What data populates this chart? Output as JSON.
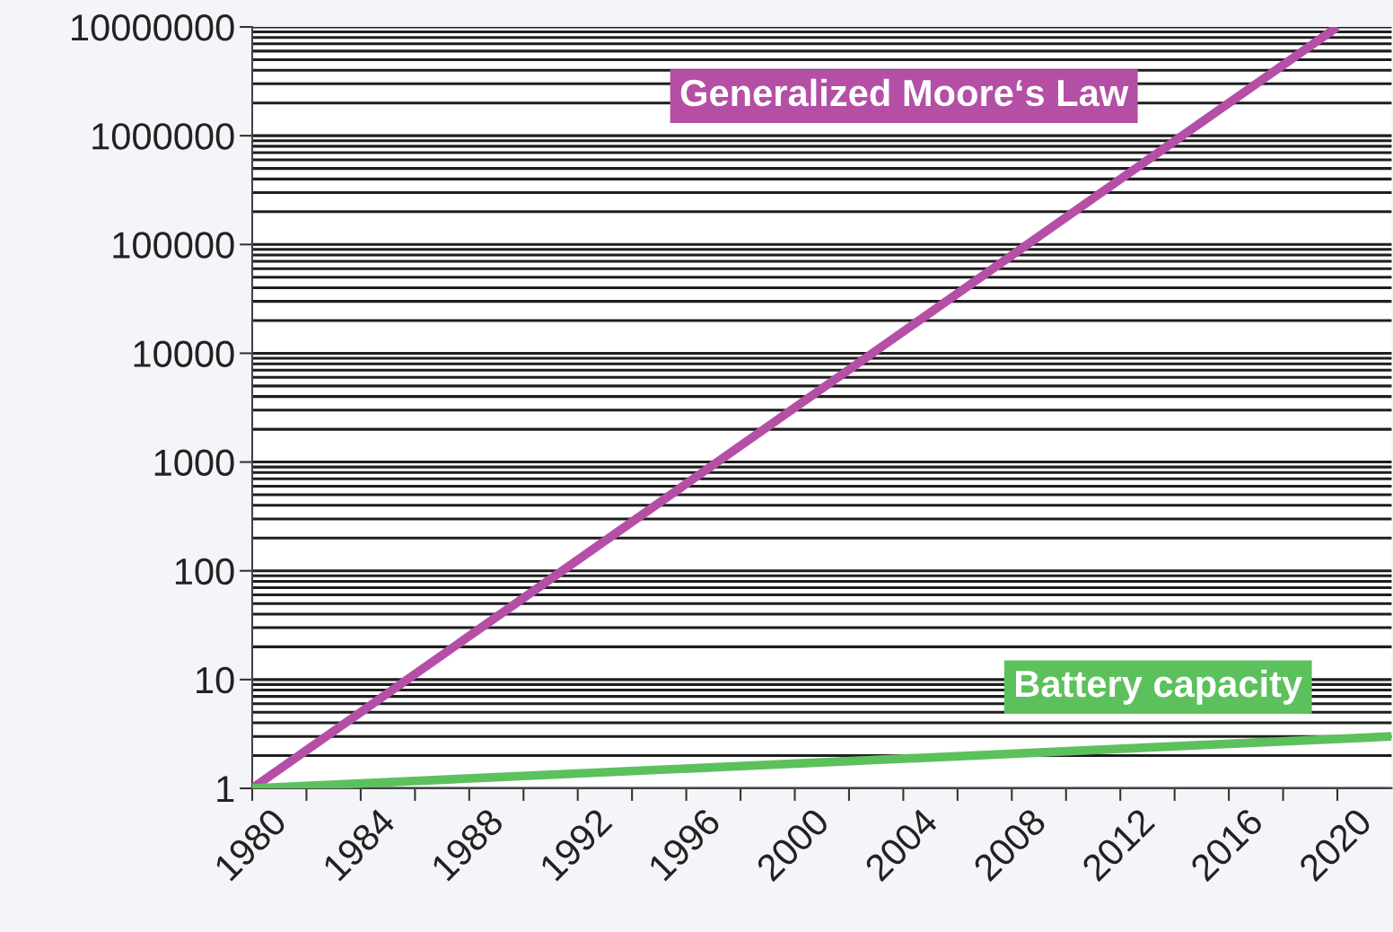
{
  "chart_data": {
    "type": "line",
    "series": [
      {
        "name": "Generalized Moore‘s Law",
        "color": "#b54fa6",
        "x": [
          1980,
          2020
        ],
        "values": [
          1,
          10000000
        ]
      },
      {
        "name": "Battery capacity",
        "color": "#5cc15c",
        "x": [
          1980,
          2022
        ],
        "values": [
          1,
          3
        ]
      }
    ],
    "log": "y",
    "xlim": [
      1980,
      2022
    ],
    "xticks": [
      1980,
      {
        "value": 1982,
        "label": null
      },
      1984,
      {
        "value": 1986,
        "label": null
      },
      1988,
      {
        "value": 1990,
        "label": null
      },
      1992,
      {
        "value": 1994,
        "label": null
      },
      1996,
      {
        "value": 1998,
        "label": null
      },
      2000,
      {
        "value": 2002,
        "label": null
      },
      2004,
      {
        "value": 2006,
        "label": null
      },
      2008,
      {
        "value": 2010,
        "label": null
      },
      2012,
      {
        "value": 2014,
        "label": null
      },
      2016,
      {
        "value": 2018,
        "label": null
      },
      2020
    ],
    "ylim": [
      1,
      10000000
    ],
    "yticks": [
      1,
      10,
      100,
      1000,
      10000,
      100000,
      1000000,
      10000000
    ],
    "grid": "y",
    "marker": "none",
    "line_style": "solid",
    "legend": false
  }
}
